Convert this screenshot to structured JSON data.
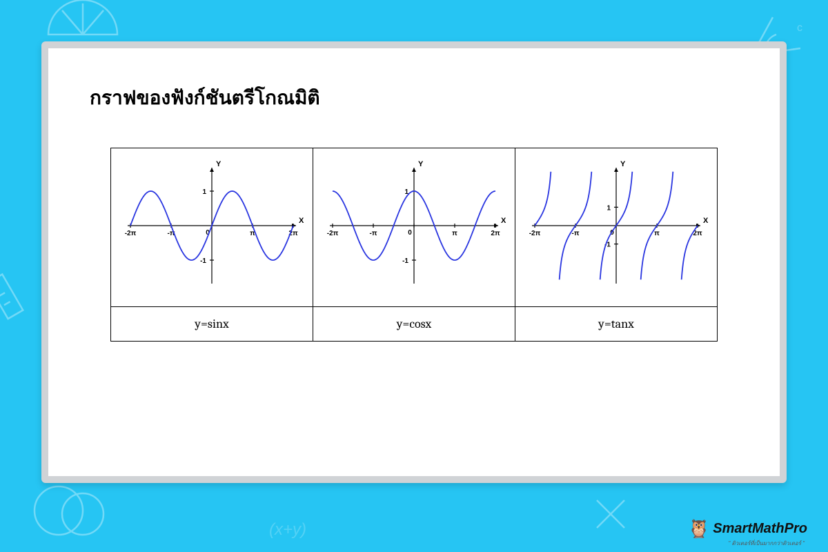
{
  "colors": {
    "background": "#26c5f3",
    "board_bg": "#ffffff",
    "board_border": "#d0d3d6",
    "title": "#000000",
    "table_border": "#000000",
    "axis": "#000000",
    "curve": "#2935e0"
  },
  "title": "กราฟของฟังก์ชันตรีโกณมิติ",
  "charts": [
    {
      "label": "y=sinx",
      "type": "line",
      "func": "sin",
      "xlim": [
        -6.2832,
        6.2832
      ],
      "ylim": [
        -1.6,
        1.6
      ],
      "xticks": [
        {
          "v": -6.2832,
          "label": "-2π"
        },
        {
          "v": -3.1416,
          "label": "-π"
        },
        {
          "v": 0,
          "label": "0"
        },
        {
          "v": 3.1416,
          "label": "π"
        },
        {
          "v": 6.2832,
          "label": "2π"
        }
      ],
      "yticks": [
        {
          "v": 1,
          "label": "1"
        },
        {
          "v": -1,
          "label": "-1"
        }
      ],
      "y_axis_label": "Y",
      "x_axis_label": "X"
    },
    {
      "label": "y=cosx",
      "type": "line",
      "func": "cos",
      "xlim": [
        -6.2832,
        6.2832
      ],
      "ylim": [
        -1.6,
        1.6
      ],
      "xticks": [
        {
          "v": -6.2832,
          "label": "-2π"
        },
        {
          "v": -3.1416,
          "label": "-π"
        },
        {
          "v": 0,
          "label": "0"
        },
        {
          "v": 3.1416,
          "label": "π"
        },
        {
          "v": 6.2832,
          "label": "2π"
        }
      ],
      "yticks": [
        {
          "v": 1,
          "label": "1"
        },
        {
          "v": -1,
          "label": "-1"
        }
      ],
      "y_axis_label": "Y",
      "x_axis_label": "X"
    },
    {
      "label": "y=tanx",
      "type": "tan",
      "func": "tan",
      "xlim": [
        -6.2832,
        6.2832
      ],
      "ylim": [
        -3,
        3
      ],
      "xticks": [
        {
          "v": -6.2832,
          "label": "-2π"
        },
        {
          "v": -3.1416,
          "label": "-π"
        },
        {
          "v": 0,
          "label": "0"
        },
        {
          "v": 3.1416,
          "label": "π"
        },
        {
          "v": 6.2832,
          "label": "2π"
        }
      ],
      "yticks": [
        {
          "v": 1,
          "label": "1"
        },
        {
          "v": -1,
          "label": "-1"
        }
      ],
      "y_axis_label": "Y",
      "x_axis_label": "X",
      "branch_offsets": [
        -6.2832,
        -3.1416,
        0,
        3.1416,
        6.2832
      ]
    }
  ],
  "logo": {
    "text": "SmartMathPro",
    "tagline": "\" ติวเตอร์ที่เป็นมากกว่าติวเตอร์ \""
  }
}
